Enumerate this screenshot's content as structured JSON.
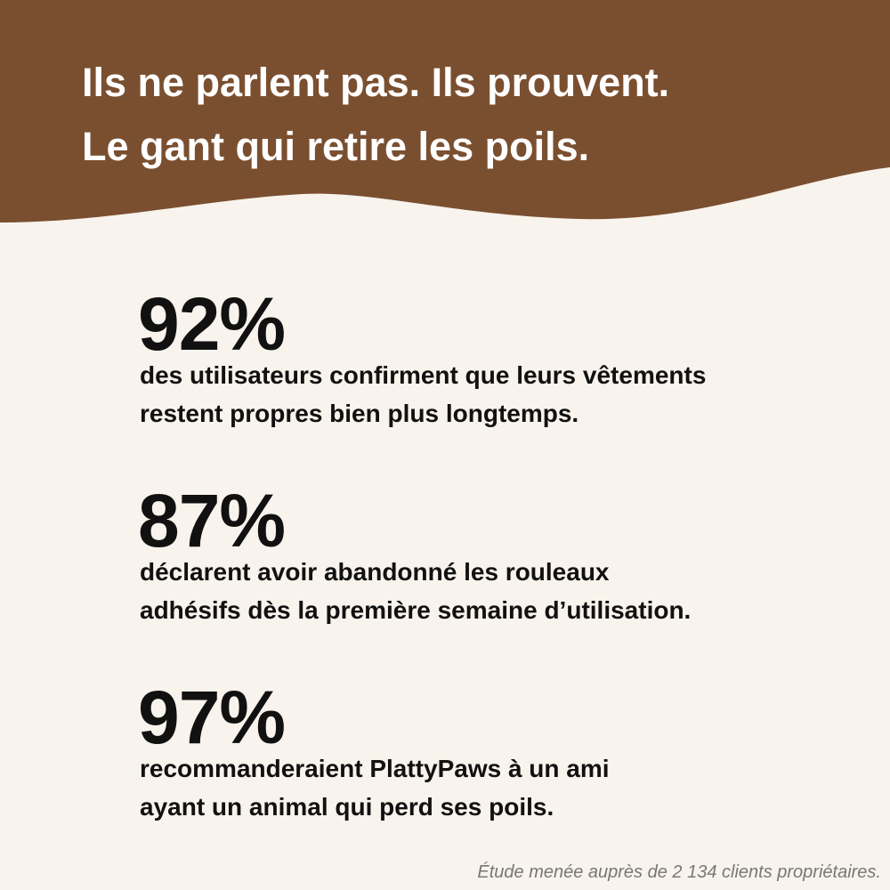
{
  "header": {
    "title_lines": [
      "Ils ne parlent pas. Ils prouvent.",
      "Le gant qui retire les poils."
    ]
  },
  "stats": [
    {
      "figure": "92%",
      "lines": [
        "des utilisateurs confirment que leurs vêtements",
        "restent propres bien plus longtemps."
      ]
    },
    {
      "figure": "87%",
      "lines": [
        "déclarent avoir abandonné les rouleaux",
        "adhésifs dès la première semaine d’utilisation."
      ]
    },
    {
      "figure": "97%",
      "lines": [
        "recommanderaient PlattyPaws à un ami",
        "ayant un animal qui perd ses poils."
      ]
    }
  ],
  "footnote": "Étude menée auprès de 2 134 clients propriétaires."
}
